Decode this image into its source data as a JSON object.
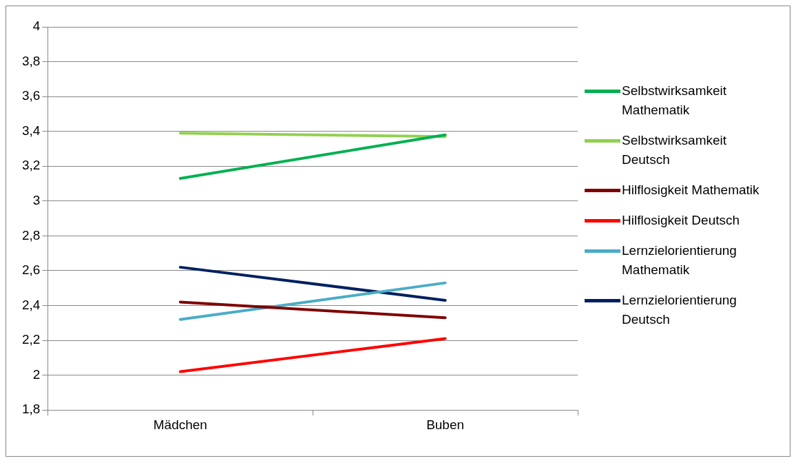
{
  "chart_data": {
    "type": "line",
    "categories": [
      "Mädchen",
      "Buben"
    ],
    "series": [
      {
        "name": "Selbstwirksamkeit Mathematik",
        "color": "#00b050",
        "values": [
          3.13,
          3.38
        ]
      },
      {
        "name": "Selbstwirksamkeit Deutsch",
        "color": "#92d050",
        "values": [
          3.39,
          3.37
        ]
      },
      {
        "name": "Hilflosigkeit Mathematik",
        "color": "#7f0000",
        "values": [
          2.42,
          2.33
        ]
      },
      {
        "name": "Hilflosigkeit Deutsch",
        "color": "#ff0000",
        "values": [
          2.02,
          2.21
        ]
      },
      {
        "name": "Lernzielorientierung Mathematik",
        "color": "#4bacc6",
        "values": [
          2.32,
          2.53
        ]
      },
      {
        "name": "Lernzielorientierung Deutsch",
        "color": "#002060",
        "values": [
          2.62,
          2.43
        ]
      }
    ],
    "ylim": [
      1.8,
      4
    ],
    "yticks": [
      {
        "value": 1.8,
        "label": "1,8"
      },
      {
        "value": 2,
        "label": "2"
      },
      {
        "value": 2.2,
        "label": "2,2"
      },
      {
        "value": 2.4,
        "label": "2,4"
      },
      {
        "value": 2.6,
        "label": "2,6"
      },
      {
        "value": 2.8,
        "label": "2,8"
      },
      {
        "value": 3,
        "label": "3"
      },
      {
        "value": 3.2,
        "label": "3,2"
      },
      {
        "value": 3.4,
        "label": "3,4"
      },
      {
        "value": 3.6,
        "label": "3,6"
      },
      {
        "value": 3.8,
        "label": "3,8"
      },
      {
        "value": 4,
        "label": "4"
      }
    ],
    "grid": "y",
    "legend": "right",
    "marker": "none",
    "line_style": "solid"
  }
}
